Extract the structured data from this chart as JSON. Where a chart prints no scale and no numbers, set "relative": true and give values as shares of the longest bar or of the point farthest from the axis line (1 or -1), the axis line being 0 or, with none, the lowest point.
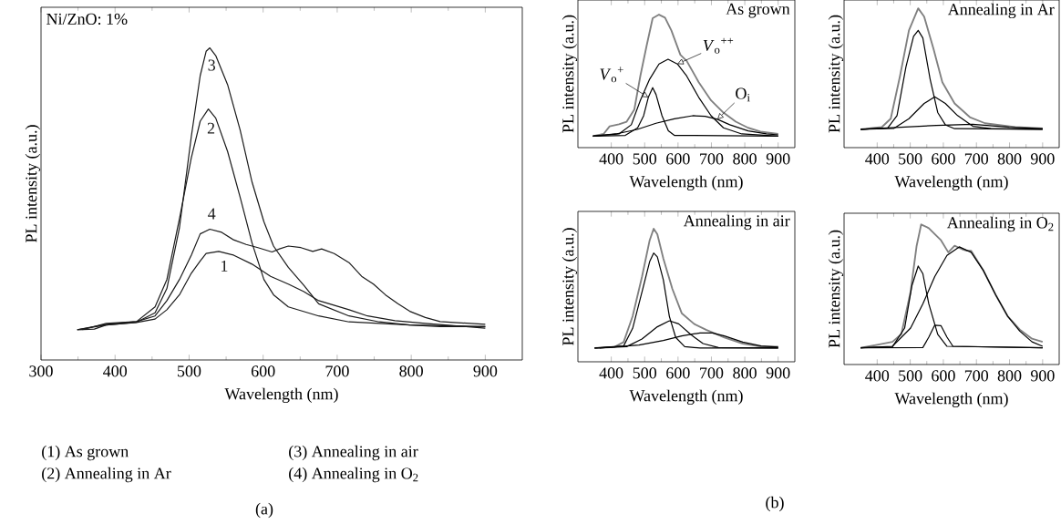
{
  "chart_data": [
    {
      "type": "line",
      "xlabel": "Wavelength (nm)",
      "ylabel": "PL intensity (a.u.)",
      "relative": true,
      "xlim": [
        300,
        950
      ],
      "xticks": [
        300,
        400,
        500,
        600,
        700,
        800,
        900
      ],
      "tick_labels": "x",
      "series": [
        {
          "name": "1",
          "color": "#1a1a1a",
          "x": [
            349,
            388,
            429,
            454,
            470,
            487,
            503,
            515,
            523,
            540,
            560,
            585,
            610,
            634,
            655,
            675,
            716,
            741,
            778,
            819,
            900
          ],
          "values": [
            0.097,
            0.112,
            0.12,
            0.131,
            0.161,
            0.209,
            0.278,
            0.317,
            0.341,
            0.348,
            0.336,
            0.307,
            0.268,
            0.243,
            0.219,
            0.19,
            0.161,
            0.141,
            0.126,
            0.117,
            0.102
          ]
        },
        {
          "name": "2",
          "color": "#1a1a1a",
          "x": [
            349,
            388,
            429,
            454,
            470,
            487,
            503,
            515,
            526,
            536,
            552,
            569,
            585,
            601,
            614,
            634,
            675,
            716,
            798,
            900
          ],
          "values": [
            0.097,
            0.114,
            0.123,
            0.17,
            0.258,
            0.453,
            0.648,
            0.765,
            0.804,
            0.775,
            0.668,
            0.521,
            0.375,
            0.258,
            0.209,
            0.17,
            0.141,
            0.122,
            0.112,
            0.107
          ]
        },
        {
          "name": "3",
          "color": "#1a1a1a",
          "x": [
            349,
            372,
            388,
            429,
            454,
            470,
            487,
            503,
            515,
            523,
            528,
            536,
            552,
            569,
            585,
            601,
            614,
            634,
            655,
            675,
            716,
            757,
            798,
            839,
            900
          ],
          "values": [
            0.097,
            0.099,
            0.112,
            0.121,
            0.151,
            0.229,
            0.424,
            0.716,
            0.911,
            0.989,
            1.0,
            0.975,
            0.882,
            0.736,
            0.57,
            0.443,
            0.365,
            0.297,
            0.239,
            0.18,
            0.141,
            0.122,
            0.112,
            0.107,
            0.107
          ]
        },
        {
          "name": "4",
          "color": "#1a1a1a",
          "x": [
            356,
            388,
            429,
            454,
            470,
            487,
            503,
            515,
            528,
            544,
            560,
            577,
            593,
            612,
            622,
            634,
            651,
            667,
            679,
            696,
            716,
            733,
            749,
            765,
            782,
            798,
            819,
            839,
            900
          ],
          "values": [
            0.097,
            0.117,
            0.123,
            0.141,
            0.19,
            0.258,
            0.336,
            0.404,
            0.419,
            0.409,
            0.385,
            0.37,
            0.36,
            0.346,
            0.356,
            0.365,
            0.36,
            0.348,
            0.356,
            0.341,
            0.312,
            0.268,
            0.243,
            0.209,
            0.18,
            0.156,
            0.136,
            0.123,
            0.114
          ]
        }
      ],
      "annotations": [
        "Ni/ZnO: 1%",
        "(1) As grown",
        "(2) Annealing in Ar",
        "(3) Annealing in air",
        "(4) Annealing in O$_{2}$",
        "(a)"
      ]
    },
    {
      "type": "line",
      "title": "As grown",
      "xlabel": "Wavelength (nm)",
      "ylabel": "PL intensity (a.u.)",
      "relative": true,
      "xlim": [
        300,
        950
      ],
      "xticks": [
        400,
        500,
        600,
        700,
        800,
        900
      ],
      "tick_labels": "x",
      "series": [
        {
          "color": "#808080",
          "x": [
            345,
            377,
            395,
            423,
            446,
            469,
            487,
            506,
            524,
            543,
            561,
            580,
            607,
            626,
            662,
            699,
            736,
            773,
            810,
            847,
            900
          ],
          "values": [
            0.087,
            0.103,
            0.16,
            0.176,
            0.195,
            0.286,
            0.538,
            0.767,
            0.973,
            1.0,
            0.977,
            0.881,
            0.698,
            0.652,
            0.492,
            0.355,
            0.263,
            0.195,
            0.149,
            0.121,
            0.103
          ]
        },
        {
          "color": "#000000",
          "x": [
            345,
            442,
            479,
            497,
            511,
            524,
            534,
            552,
            571,
            589,
            900
          ],
          "values": [
            0.087,
            0.092,
            0.149,
            0.24,
            0.378,
            0.451,
            0.4,
            0.24,
            0.126,
            0.092,
            0.087
          ]
        },
        {
          "color": "#000000",
          "x": [
            345,
            423,
            460,
            487,
            515,
            543,
            570,
            598,
            626,
            662,
            699,
            736,
            791,
            900
          ],
          "values": [
            0.087,
            0.103,
            0.172,
            0.355,
            0.515,
            0.629,
            0.664,
            0.629,
            0.538,
            0.378,
            0.24,
            0.149,
            0.103,
            0.087
          ]
        },
        {
          "color": "#000000",
          "x": [
            345,
            414,
            478,
            534,
            589,
            644,
            681,
            718,
            755,
            810,
            865,
            900
          ],
          "values": [
            0.087,
            0.103,
            0.137,
            0.183,
            0.217,
            0.24,
            0.236,
            0.213,
            0.172,
            0.126,
            0.103,
            0.096
          ]
        }
      ],
      "annotations": [
        {
          "text": "*V*$_{o}$$^{+}$",
          "x": 511,
          "y": 0.378
        },
        {
          "text": "*V*$_{o}$$^{++}$",
          "x": 598,
          "y": 0.629
        },
        {
          "text": "O$_{i}$",
          "x": 718,
          "y": 0.213
        }
      ]
    },
    {
      "type": "line",
      "title": "Annealing in Ar",
      "xlabel": "Wavelength (nm)",
      "ylabel": "PL intensity (a.u.)",
      "relative": true,
      "xlim": [
        300,
        950
      ],
      "xticks": [
        400,
        500,
        600,
        700,
        800,
        900
      ],
      "tick_labels": "x",
      "series": [
        {
          "color": "#808080",
          "x": [
            350,
            414,
            441,
            469,
            496,
            524,
            542,
            570,
            597,
            634,
            680,
            726,
            817,
            900
          ],
          "values": [
            0.131,
            0.147,
            0.208,
            0.514,
            0.842,
            1.0,
            0.941,
            0.711,
            0.47,
            0.317,
            0.219,
            0.175,
            0.147,
            0.138
          ]
        },
        {
          "color": "#000000",
          "x": [
            350,
            432,
            460,
            487,
            510,
            524,
            538,
            560,
            583,
            606,
            634,
            900
          ],
          "values": [
            0.131,
            0.142,
            0.23,
            0.58,
            0.799,
            0.842,
            0.788,
            0.492,
            0.252,
            0.164,
            0.136,
            0.131
          ]
        },
        {
          "color": "#000000",
          "x": [
            350,
            450,
            496,
            542,
            574,
            606,
            643,
            689,
            744,
            900
          ],
          "values": [
            0.131,
            0.138,
            0.208,
            0.317,
            0.365,
            0.317,
            0.23,
            0.153,
            0.136,
            0.131
          ]
        },
        {
          "color": "#000000",
          "x": [
            350,
            579,
            689,
            799,
            900
          ],
          "values": [
            0.131,
            0.16,
            0.168,
            0.147,
            0.136
          ]
        }
      ]
    },
    {
      "type": "line",
      "title": "Annealing in air",
      "xlabel": "Wavelength (nm)",
      "ylabel": "PL intensity (a.u.)",
      "relative": true,
      "xlim": [
        300,
        950
      ],
      "xticks": [
        400,
        500,
        600,
        700,
        800,
        900
      ],
      "tick_labels": "x",
      "series": [
        {
          "color": "#808080",
          "x": [
            350,
            409,
            437,
            464,
            492,
            515,
            527,
            538,
            556,
            583,
            611,
            648,
            684,
            739,
            794,
            849,
            900
          ],
          "values": [
            0.103,
            0.11,
            0.148,
            0.342,
            0.639,
            0.913,
            1.0,
            0.959,
            0.776,
            0.548,
            0.365,
            0.285,
            0.24,
            0.183,
            0.137,
            0.114,
            0.114
          ]
        },
        {
          "color": "#000000",
          "x": [
            350,
            437,
            464,
            492,
            515,
            527,
            538,
            556,
            574,
            593,
            620,
            666,
            900
          ],
          "values": [
            0.103,
            0.119,
            0.251,
            0.525,
            0.753,
            0.817,
            0.788,
            0.616,
            0.342,
            0.183,
            0.114,
            0.103,
            0.103
          ]
        },
        {
          "color": "#000000",
          "x": [
            350,
            446,
            492,
            538,
            574,
            602,
            638,
            675,
            721,
            900
          ],
          "values": [
            0.103,
            0.114,
            0.171,
            0.263,
            0.308,
            0.285,
            0.205,
            0.137,
            0.107,
            0.103
          ]
        },
        {
          "color": "#000000",
          "x": [
            365,
            483,
            556,
            611,
            666,
            703,
            739,
            794,
            849,
            900
          ],
          "values": [
            0.103,
            0.126,
            0.16,
            0.194,
            0.217,
            0.217,
            0.194,
            0.148,
            0.119,
            0.11
          ]
        }
      ],
      "annotations": [
        "(b)"
      ]
    },
    {
      "type": "line",
      "title": "Annealing in O$_{2}$",
      "xlabel": "Wavelength (nm)",
      "ylabel": "PL intensity (a.u.)",
      "relative": true,
      "xlim": [
        300,
        950
      ],
      "xticks": [
        400,
        500,
        600,
        700,
        800,
        900
      ],
      "tick_labels": "x",
      "series": [
        {
          "color": "#808080",
          "x": [
            350,
            400,
            446,
            473,
            501,
            519,
            533,
            556,
            574,
            593,
            615,
            634,
            657,
            671,
            684,
            721,
            758,
            794,
            831,
            868,
            900
          ],
          "values": [
            0.119,
            0.141,
            0.162,
            0.216,
            0.519,
            0.844,
            1.0,
            0.974,
            0.931,
            0.887,
            0.801,
            0.848,
            0.823,
            0.812,
            0.812,
            0.671,
            0.498,
            0.346,
            0.249,
            0.184,
            0.162
          ]
        },
        {
          "color": "#000000",
          "x": [
            350,
            446,
            483,
            505,
            524,
            538,
            556,
            583,
            611,
            900
          ],
          "values": [
            0.119,
            0.126,
            0.26,
            0.563,
            0.703,
            0.649,
            0.433,
            0.216,
            0.13,
            0.119
          ]
        },
        {
          "color": "#000000",
          "x": [
            350,
            538,
            556,
            574,
            593,
            611,
            629,
            900
          ],
          "values": [
            0.119,
            0.121,
            0.195,
            0.281,
            0.277,
            0.195,
            0.13,
            0.119
          ]
        },
        {
          "color": "#000000",
          "x": [
            350,
            446,
            501,
            538,
            574,
            611,
            648,
            684,
            721,
            758,
            794,
            831,
            868,
            900
          ],
          "values": [
            0.119,
            0.13,
            0.26,
            0.433,
            0.628,
            0.779,
            0.84,
            0.801,
            0.671,
            0.498,
            0.346,
            0.238,
            0.162,
            0.13
          ]
        }
      ]
    }
  ]
}
